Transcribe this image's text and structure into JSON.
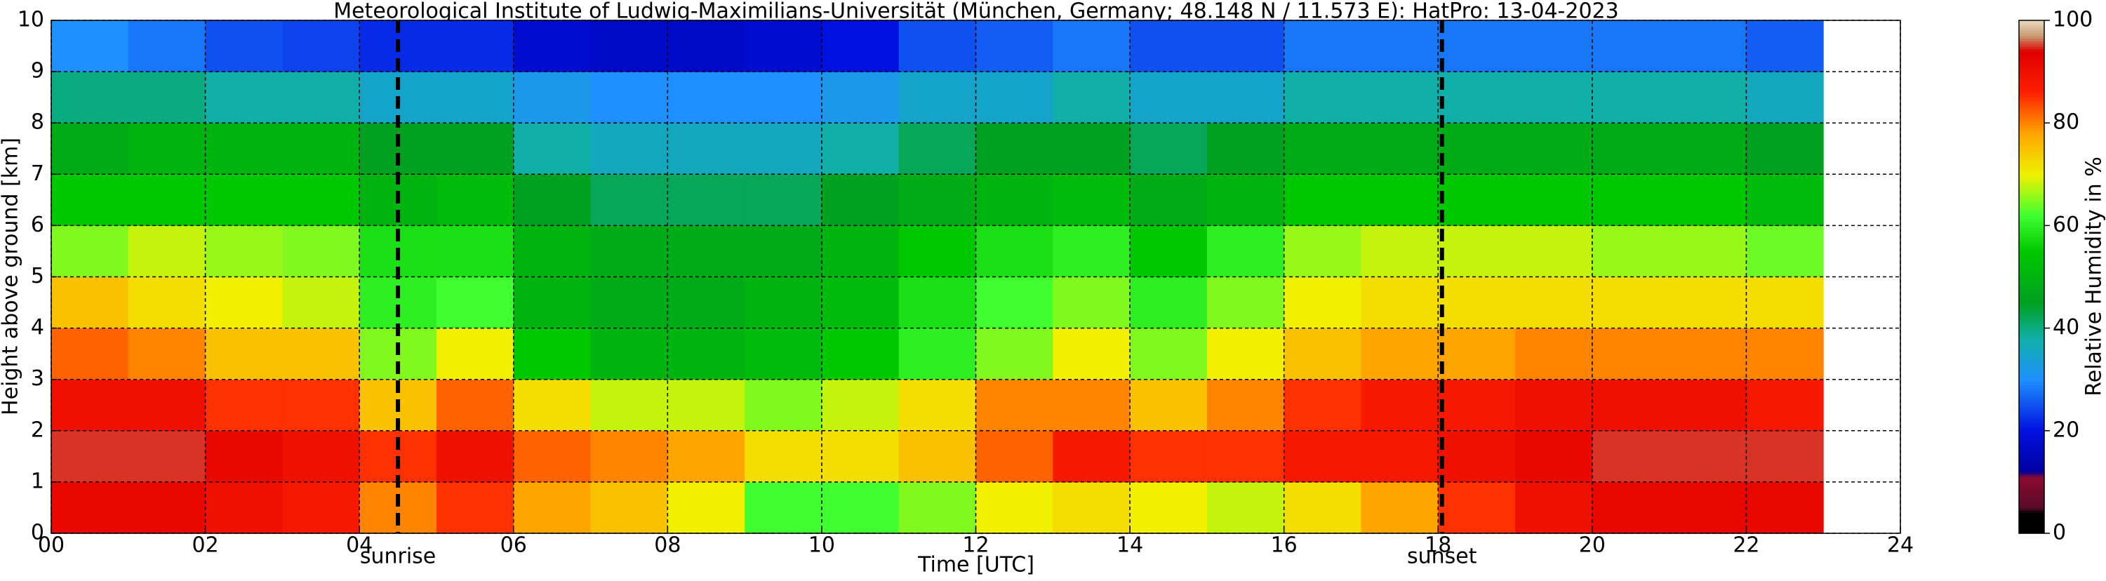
{
  "chart_data": {
    "type": "heatmap",
    "title": "Meteorological Institute of Ludwig-Maximilians-Universität (München, Germany; 48.148 N / 11.573 E):    HatPro: 13-04-2023",
    "x_label": "Time [UTC]",
    "y_label": "Height above ground [km]",
    "colorbar_label": "Relative Humidity in %",
    "x": [
      0,
      1,
      2,
      3,
      4,
      5,
      6,
      7,
      8,
      9,
      10,
      11,
      12,
      13,
      14,
      15,
      16,
      17,
      18,
      19,
      20,
      21,
      22
    ],
    "y": [
      0,
      1,
      2,
      3,
      4,
      5,
      6,
      7,
      8,
      9
    ],
    "z": [
      [
        92,
        92,
        90,
        88,
        80,
        85,
        78,
        75,
        70,
        62,
        62,
        65,
        70,
        72,
        70,
        68,
        72,
        78,
        85,
        90,
        92,
        92,
        92
      ],
      [
        95,
        95,
        92,
        90,
        85,
        90,
        82,
        80,
        78,
        72,
        72,
        75,
        82,
        88,
        85,
        85,
        88,
        88,
        90,
        92,
        95,
        95,
        95
      ],
      [
        90,
        90,
        85,
        85,
        75,
        82,
        72,
        68,
        68,
        65,
        68,
        72,
        80,
        80,
        75,
        80,
        85,
        88,
        88,
        90,
        90,
        90,
        88
      ],
      [
        82,
        80,
        75,
        75,
        65,
        70,
        55,
        50,
        50,
        52,
        55,
        60,
        65,
        70,
        65,
        70,
        75,
        78,
        78,
        80,
        80,
        80,
        80
      ],
      [
        75,
        72,
        70,
        68,
        60,
        62,
        50,
        48,
        48,
        50,
        52,
        58,
        62,
        65,
        60,
        65,
        70,
        72,
        72,
        72,
        72,
        72,
        72
      ],
      [
        65,
        68,
        66,
        65,
        58,
        58,
        50,
        48,
        48,
        48,
        50,
        55,
        58,
        60,
        55,
        60,
        66,
        68,
        68,
        68,
        66,
        66,
        64
      ],
      [
        55,
        55,
        55,
        55,
        50,
        52,
        45,
        42,
        42,
        42,
        45,
        48,
        50,
        52,
        48,
        50,
        55,
        55,
        55,
        55,
        55,
        55,
        52
      ],
      [
        48,
        50,
        50,
        50,
        45,
        45,
        38,
        36,
        36,
        36,
        38,
        42,
        45,
        45,
        42,
        45,
        48,
        48,
        48,
        48,
        48,
        48,
        45
      ],
      [
        40,
        40,
        38,
        38,
        35,
        35,
        32,
        30,
        30,
        30,
        32,
        35,
        35,
        38,
        35,
        35,
        38,
        38,
        38,
        38,
        38,
        38,
        36
      ],
      [
        30,
        28,
        25,
        24,
        22,
        22,
        18,
        17,
        17,
        18,
        20,
        25,
        26,
        28,
        25,
        25,
        28,
        28,
        28,
        28,
        28,
        28,
        26
      ]
    ],
    "xlim": [
      0,
      24
    ],
    "ylim": [
      0,
      10
    ],
    "xticks": [
      {
        "value": 0,
        "label": "00"
      },
      {
        "value": 2,
        "label": "02"
      },
      {
        "value": 4,
        "label": "04"
      },
      {
        "value": 6,
        "label": "06"
      },
      {
        "value": 8,
        "label": "08"
      },
      {
        "value": 10,
        "label": "10"
      },
      {
        "value": 12,
        "label": "12"
      },
      {
        "value": 14,
        "label": "14"
      },
      {
        "value": 16,
        "label": "16"
      },
      {
        "value": 18,
        "label": "18"
      },
      {
        "value": 20,
        "label": "20"
      },
      {
        "value": 22,
        "label": "22"
      },
      {
        "value": 24,
        "label": "24"
      }
    ],
    "yticks": [
      0,
      1,
      2,
      3,
      4,
      5,
      6,
      7,
      8,
      9,
      10
    ],
    "clim": [
      0,
      100
    ],
    "cticks": [
      0,
      20,
      40,
      60,
      80,
      100
    ],
    "grid": true,
    "colorscale": [
      {
        "value": 0,
        "color": "#000000"
      },
      {
        "value": 4,
        "color": "#000000"
      },
      {
        "value": 5,
        "color": "#5a0a2a"
      },
      {
        "value": 11,
        "color": "#8b0a30"
      },
      {
        "value": 12,
        "color": "#0000a0"
      },
      {
        "value": 20,
        "color": "#0010e0"
      },
      {
        "value": 30,
        "color": "#1e90ff"
      },
      {
        "value": 38,
        "color": "#10b0a8"
      },
      {
        "value": 45,
        "color": "#00a020"
      },
      {
        "value": 55,
        "color": "#00c800"
      },
      {
        "value": 62,
        "color": "#40ff30"
      },
      {
        "value": 70,
        "color": "#f0f000"
      },
      {
        "value": 78,
        "color": "#ffa500"
      },
      {
        "value": 86,
        "color": "#ff2000"
      },
      {
        "value": 94,
        "color": "#e00000"
      },
      {
        "value": 97,
        "color": "#c89a70"
      },
      {
        "value": 100,
        "color": "#e8d8c0"
      }
    ],
    "annotations": [
      {
        "text": "sunrise",
        "x": 4.5
      },
      {
        "text": "sunset",
        "x": 18.05
      }
    ]
  }
}
